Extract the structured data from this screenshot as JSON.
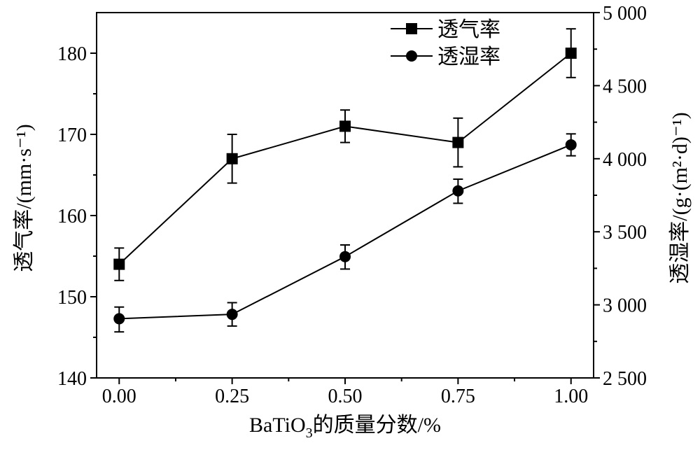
{
  "chart_data": {
    "type": "line",
    "xlabel": "BaTiO",
    "xlabel_sub": "3",
    "xlabel_suffix": "的质量分数/%",
    "ylabel_left": "透气率/(mm·s⁻¹)",
    "ylabel_right": "透湿率/(g·(m²·d)⁻¹)",
    "x": [
      0.0,
      0.25,
      0.5,
      0.75,
      1.0
    ],
    "xlim": [
      -0.05,
      1.05
    ],
    "x_ticks": [
      0.0,
      0.25,
      0.5,
      0.75,
      1.0
    ],
    "x_tick_labels": [
      "0.00",
      "0.25",
      "0.50",
      "0.75",
      "1.00"
    ],
    "ylim_left": [
      140,
      185
    ],
    "y_ticks_left": [
      140,
      150,
      160,
      170,
      180
    ],
    "y_tick_labels_left": [
      "140",
      "150",
      "160",
      "170",
      "180"
    ],
    "ylim_right": [
      2500,
      5000
    ],
    "y_ticks_right": [
      2500,
      3000,
      3500,
      4000,
      4500,
      5000
    ],
    "y_tick_labels_right": [
      "2 500",
      "3 000",
      "3 500",
      "4 000",
      "4 500",
      "5 000"
    ],
    "legend_position": "top-right",
    "grid": false,
    "series": [
      {
        "name": "透气率",
        "axis": "left",
        "marker": "square",
        "values": [
          154,
          167,
          171,
          169,
          180
        ],
        "error_low": [
          152,
          164,
          169,
          166,
          177
        ],
        "error_high": [
          156,
          170,
          173,
          172,
          183
        ]
      },
      {
        "name": "透湿率",
        "axis": "right",
        "marker": "circle",
        "values": [
          2905,
          2935,
          3330,
          3780,
          4095
        ],
        "error_low": [
          2815,
          2855,
          3245,
          3695,
          4020
        ],
        "error_high": [
          2985,
          3015,
          3410,
          3860,
          4170
        ]
      }
    ]
  }
}
